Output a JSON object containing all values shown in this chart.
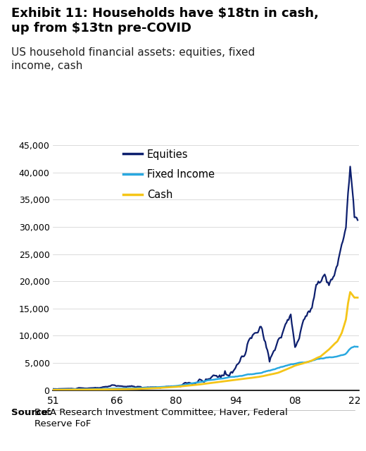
{
  "title_bold": "Exhibit 11: Households have $18tn in cash,\nup from $13tn pre-COVID",
  "subtitle": "US household financial assets: equities, fixed\nincome, cash",
  "source_bold": "Source:",
  "source_normal": " BofA Research Investment Committee, Haver, Federal\nReserve FoF",
  "xlabel_ticks": [
    "51",
    "66",
    "80",
    "94",
    "08",
    "22"
  ],
  "xlabel_tick_years": [
    1951,
    1966,
    1980,
    1994,
    2008,
    2022
  ],
  "ylim": [
    0,
    46000
  ],
  "yticks": [
    0,
    5000,
    10000,
    15000,
    20000,
    25000,
    30000,
    35000,
    40000,
    45000
  ],
  "equities_color": "#0d1f6e",
  "fixed_income_color": "#29a8e0",
  "cash_color": "#f5c518",
  "legend_labels": [
    "Equities",
    "Fixed Income",
    "Cash"
  ],
  "background_color": "#ffffff",
  "title_fontsize": 13,
  "subtitle_fontsize": 11,
  "source_fontsize": 9.5
}
